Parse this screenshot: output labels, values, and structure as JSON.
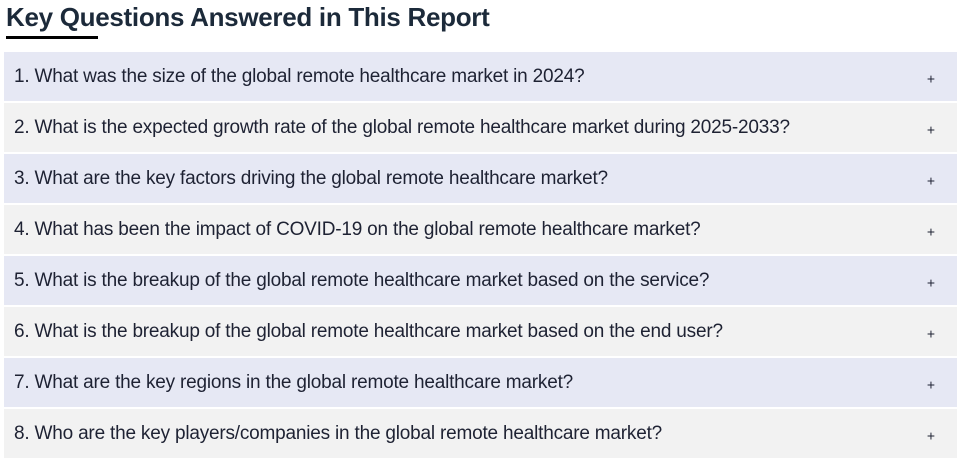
{
  "section": {
    "title": "Key Questions Answered in This Report"
  },
  "faq": {
    "toggle_icon": "plus-icon",
    "toggle_glyph": "+",
    "items": [
      {
        "question": "1. What was the size of the global remote healthcare market in 2024?"
      },
      {
        "question": "2. What is the expected growth rate of the global remote healthcare market during 2025-2033?"
      },
      {
        "question": "3. What are the key factors driving the global remote healthcare market?"
      },
      {
        "question": "4. What has been the impact of COVID-19 on the global remote healthcare market?"
      },
      {
        "question": "5. What is the breakup of the global remote healthcare market based on the service?"
      },
      {
        "question": "6. What is the breakup of the global remote healthcare market based on the end user?"
      },
      {
        "question": "7. What are the key regions in the global remote healthcare market?"
      },
      {
        "question": "8. Who are the key players/companies in the global remote healthcare market?"
      }
    ]
  },
  "colors": {
    "row_odd": "#e6e8f4",
    "row_even": "#f2f2f2",
    "text": "#1e2233",
    "accent_underline": "#000000"
  }
}
